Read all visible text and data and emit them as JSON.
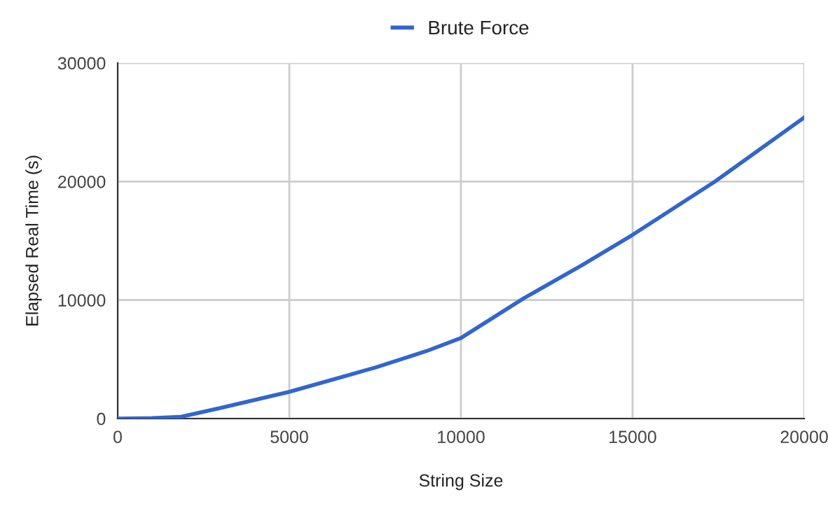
{
  "chart_data": {
    "type": "line",
    "xlabel": "String Size",
    "ylabel": "Elapsed Real Time (s)",
    "x": [
      0,
      1000,
      1860,
      3000,
      5000,
      7500,
      9000,
      10000,
      11830,
      13500,
      15000,
      17400,
      20000
    ],
    "series": [
      {
        "name": "Brute Force",
        "color": "#3366cc",
        "values": [
          0,
          40,
          160,
          900,
          2260,
          4300,
          5700,
          6800,
          10150,
          12900,
          15500,
          20000,
          25400
        ]
      }
    ],
    "xlim": [
      0,
      20000
    ],
    "xticks": [
      0,
      5000,
      10000,
      15000,
      20000
    ],
    "ylim": [
      0,
      30000
    ],
    "yticks": [
      0,
      10000,
      20000,
      30000
    ],
    "grid": true,
    "legend": "top",
    "marker": "none",
    "line_style": "solid"
  }
}
